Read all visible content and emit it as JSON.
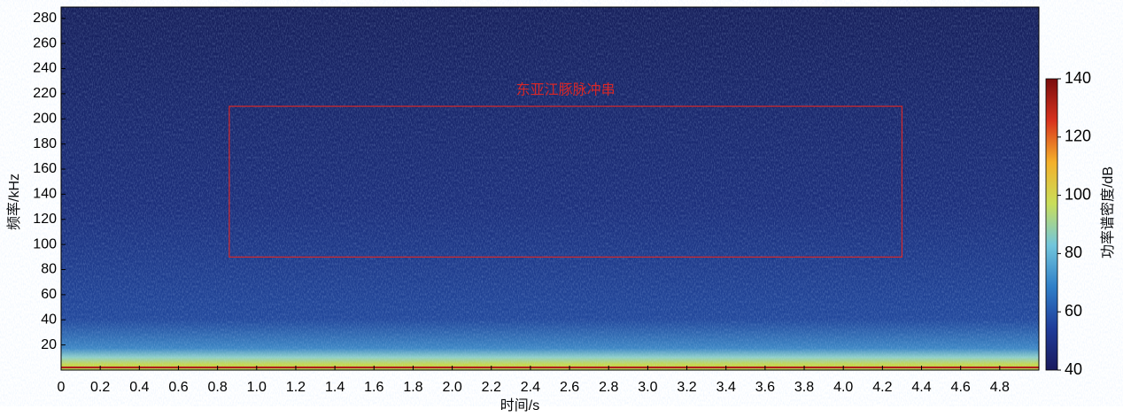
{
  "chart_data": {
    "type": "spectrogram",
    "xlabel": "时间/s",
    "ylabel": "频率/kHz",
    "xlim": [
      0,
      5.0
    ],
    "ylim": [
      0,
      289
    ],
    "xticks": [
      0,
      0.2,
      0.4,
      0.6,
      0.8,
      {
        "value": 1,
        "label": "1.0"
      },
      1.2,
      1.4,
      1.6,
      1.8,
      {
        "value": 2,
        "label": "2.0"
      },
      2.2,
      2.4,
      2.6,
      2.8,
      {
        "value": 3,
        "label": "3.0"
      },
      3.2,
      3.4,
      3.6,
      3.8,
      {
        "value": 4,
        "label": "4.0"
      },
      4.2,
      4.4,
      4.6,
      4.8
    ],
    "yticks": [
      20,
      40,
      60,
      80,
      100,
      120,
      140,
      160,
      180,
      200,
      220,
      240,
      260,
      280
    ],
    "annotation": {
      "text": "东亚江豚脉冲串",
      "color": "#d62728",
      "xlim": [
        0.86,
        4.3
      ],
      "ylim": [
        90,
        210
      ]
    },
    "colorbar": {
      "label": "功率谱密度/dB",
      "lim": [
        40,
        140
      ],
      "ticks": [
        40,
        60,
        80,
        100,
        120,
        140
      ],
      "colormap": [
        "#1a1a5e",
        "#1f3c9a",
        "#2f7fc8",
        "#72c6dc",
        "#c9de5a",
        "#f4b02a",
        "#d8321e",
        "#7a0c0c"
      ]
    }
  }
}
